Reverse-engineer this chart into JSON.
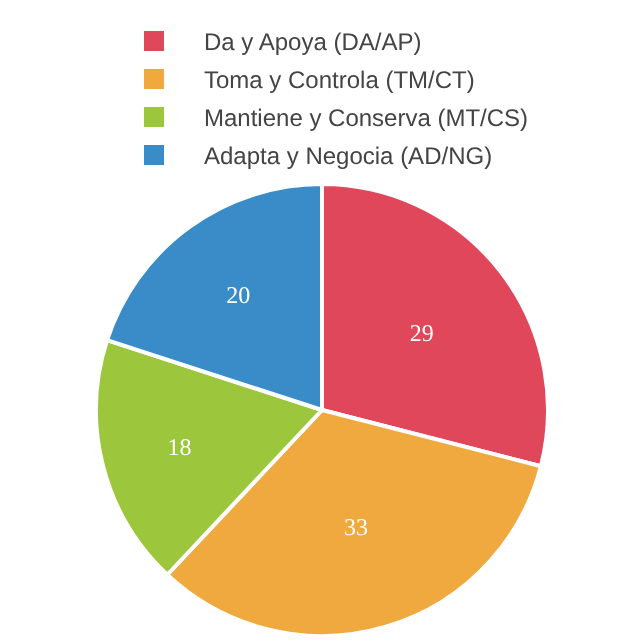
{
  "chart_data": {
    "type": "pie",
    "categories": [
      "Da y Apoya (DA/AP)",
      "Toma y Controla (TM/CT)",
      "Mantiene y Conserva (MT/CS)",
      "Adapta y Negocia (AD/NG)"
    ],
    "values": [
      29,
      33,
      18,
      20
    ],
    "colors": [
      "#e0475a",
      "#f0a93e",
      "#9cc73d",
      "#3a8cc8"
    ],
    "data_labels": true,
    "legend": "top"
  }
}
